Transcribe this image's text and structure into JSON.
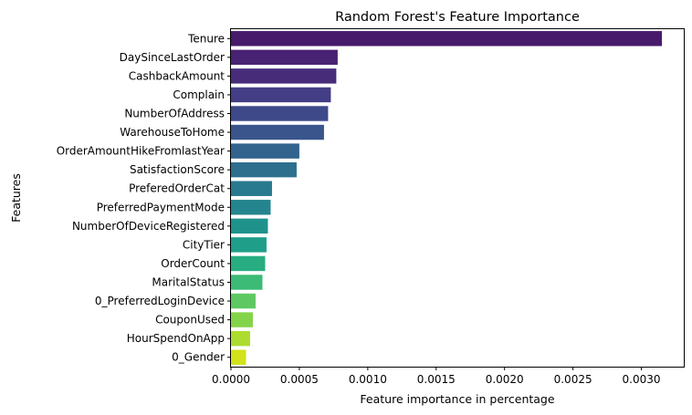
{
  "chart_data": {
    "type": "bar",
    "orientation": "horizontal",
    "title": "Random Forest's Feature Importance",
    "xlabel": "Feature importance in percentage",
    "ylabel": "Features",
    "xlim": [
      0,
      0.00331
    ],
    "xticks": [
      "0.0000",
      "0.0005",
      "0.0010",
      "0.0015",
      "0.0020",
      "0.0025",
      "0.0030"
    ],
    "xtick_values": [
      0,
      0.0005,
      0.001,
      0.0015,
      0.002,
      0.0025,
      0.003
    ],
    "grid": false,
    "legend": "none",
    "palette": "viridis",
    "categories": [
      "Tenure",
      "DaySinceLastOrder",
      "CashbackAmount",
      "Complain",
      "NumberOfAddress",
      "WarehouseToHome",
      "OrderAmountHikeFromlastYear",
      "SatisfactionScore",
      "PreferedOrderCat",
      "PreferredPaymentMode",
      "NumberOfDeviceRegistered",
      "CityTier",
      "OrderCount",
      "MaritalStatus",
      "0_PreferredLoginDevice",
      "CouponUsed",
      "HourSpendOnApp",
      "0_Gender"
    ],
    "values": [
      0.00315,
      0.00078,
      0.00077,
      0.00073,
      0.00071,
      0.00068,
      0.0005,
      0.00048,
      0.0003,
      0.00029,
      0.00027,
      0.00026,
      0.00025,
      0.00023,
      0.00018,
      0.00016,
      0.00014,
      0.00011
    ],
    "colors": [
      "#481a6c",
      "#482273",
      "#472c7a",
      "#433e85",
      "#3e4989",
      "#39558c",
      "#32648e",
      "#2e6f8e",
      "#297a8e",
      "#25858e",
      "#20928c",
      "#1f9e89",
      "#27ad81",
      "#3bbb75",
      "#5ec962",
      "#84d44b",
      "#addc30",
      "#d2e21b"
    ]
  }
}
